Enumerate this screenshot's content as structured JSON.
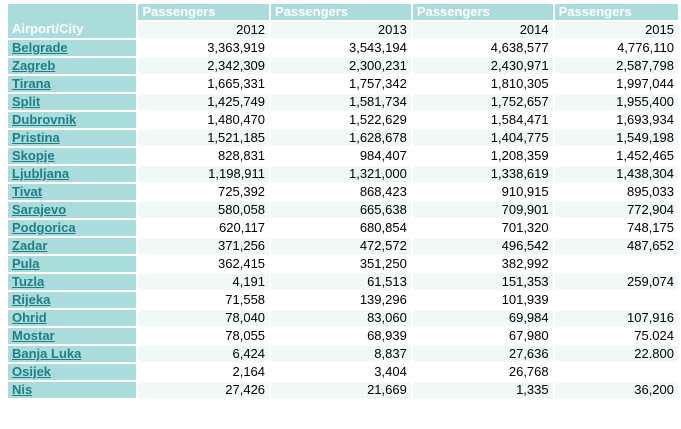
{
  "table": {
    "corner_header": "Airport/City",
    "group_headers": [
      "Passengers",
      "Passengers",
      "Passengers",
      "Passengers"
    ],
    "years": [
      "2012",
      "2013",
      "2014",
      "2015"
    ],
    "rows": [
      {
        "city": "Belgrade",
        "v": [
          "3,363,919",
          "3,543,194",
          "4,638,577",
          "4,776,110"
        ]
      },
      {
        "city": "Zagreb",
        "v": [
          "2,342,309",
          "2,300,231",
          "2,430,971",
          "2,587,798"
        ]
      },
      {
        "city": "Tirana",
        "v": [
          "1,665,331",
          "1,757,342",
          "1,810,305",
          "1,997,044"
        ]
      },
      {
        "city": "Split",
        "v": [
          "1,425,749",
          "1,581,734",
          "1,752,657",
          "1,955,400"
        ]
      },
      {
        "city": "Dubrovnik",
        "v": [
          "1,480,470",
          "1,522,629",
          "1,584,471",
          "1,693,934"
        ]
      },
      {
        "city": "Pristina",
        "v": [
          "1,521,185",
          "1,628,678",
          "1,404,775",
          "1,549,198"
        ]
      },
      {
        "city": "Skopje",
        "v": [
          "828,831",
          "984,407",
          "1,208,359",
          "1,452,465"
        ]
      },
      {
        "city": "Ljubljana",
        "v": [
          "1,198,911",
          "1,321,000",
          "1,338,619",
          "1,438,304"
        ]
      },
      {
        "city": "Tivat",
        "v": [
          "725,392",
          "868,423",
          "910,915",
          "895,033"
        ]
      },
      {
        "city": "Sarajevo",
        "v": [
          "580,058",
          "665,638",
          "709,901",
          "772,904"
        ]
      },
      {
        "city": "Podgorica",
        "v": [
          "620,117",
          "680,854",
          "701,320",
          "748,175"
        ]
      },
      {
        "city": "Zadar",
        "v": [
          "371,256",
          "472,572",
          "496,542",
          "487,652"
        ]
      },
      {
        "city": "Pula",
        "v": [
          "362,415",
          "351,250",
          "382,992",
          ""
        ]
      },
      {
        "city": "Tuzla",
        "v": [
          "4,191",
          "61,513",
          "151,353",
          "259,074"
        ]
      },
      {
        "city": "Rijeka",
        "v": [
          "71,558",
          "139,296",
          "101,939",
          ""
        ]
      },
      {
        "city": "Ohrid",
        "v": [
          "78,040",
          "83,060",
          "69,984",
          "107,916"
        ]
      },
      {
        "city": "Mostar",
        "v": [
          "78,055",
          "68,939",
          "67,980",
          "75.024"
        ]
      },
      {
        "city": "Banja Luka",
        "v": [
          "6,424",
          "8,837",
          "27,636",
          "22.800"
        ]
      },
      {
        "city": "Osijek",
        "v": [
          "2,164",
          "3,404",
          "26,768",
          ""
        ]
      },
      {
        "city": "Nis",
        "v": [
          "27,426",
          "21,669",
          "1,335",
          "36,200"
        ]
      }
    ]
  }
}
